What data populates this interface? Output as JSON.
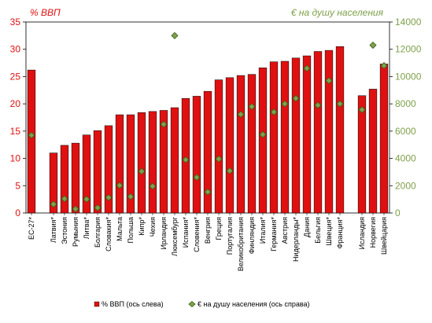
{
  "chart_data": {
    "type": "bar",
    "left_axis_title": "% ВВП",
    "right_axis_title": "€ на душу населения",
    "ylim_left": [
      0,
      35
    ],
    "yticks_left": [
      0,
      5,
      10,
      15,
      20,
      25,
      30,
      35
    ],
    "ylim_right": [
      0,
      14000
    ],
    "yticks_right": [
      0,
      2000,
      4000,
      6000,
      8000,
      10000,
      12000,
      14000
    ],
    "grid": false,
    "legend_position": "bottom",
    "categories": [
      "ЕС-27*",
      "Латвия*",
      "Эстония",
      "Румыния",
      "Литва*",
      "Болгария",
      "Словакия*",
      "Мальта",
      "Польша",
      "Кипр*",
      "Чехия",
      "Ирландия",
      "Люксембург",
      "Испания*",
      "Словения*",
      "Венгрия",
      "Греция",
      "Португалия",
      "Великобритания",
      "Финляндия",
      "Италия*",
      "Германия*",
      "Австрия",
      "Нидерланды*",
      "Дания",
      "Бельгия",
      "Швеция*",
      "Франция*",
      "Исландия",
      "Норвегия",
      "Швейцария"
    ],
    "category_group_gap_after": [
      "ЕС-27*",
      "Франция*"
    ],
    "series": [
      {
        "name": "% ВВП (ось слева)",
        "type": "bar",
        "axis": "left",
        "color": "#e01010",
        "values": [
          26.2,
          11.0,
          12.4,
          12.8,
          14.3,
          15.1,
          16.0,
          18.0,
          18.0,
          18.4,
          18.6,
          18.8,
          19.3,
          21.0,
          21.4,
          22.3,
          24.4,
          24.8,
          25.2,
          25.4,
          26.6,
          27.7,
          27.8,
          28.4,
          28.8,
          29.6,
          29.8,
          30.5,
          21.5,
          22.7,
          27.3
        ]
      },
      {
        "name": "€ на душу населения (ось справа)",
        "type": "scatter",
        "axis": "right",
        "color": "#7fa04a",
        "values": [
          5700,
          640,
          1040,
          290,
          1010,
          380,
          1130,
          2020,
          1200,
          3050,
          1960,
          6500,
          13000,
          3900,
          2610,
          1540,
          3960,
          3090,
          7230,
          7800,
          5750,
          7400,
          8000,
          8400,
          10600,
          7900,
          9700,
          8000,
          7570,
          12300,
          10800
        ]
      }
    ]
  }
}
